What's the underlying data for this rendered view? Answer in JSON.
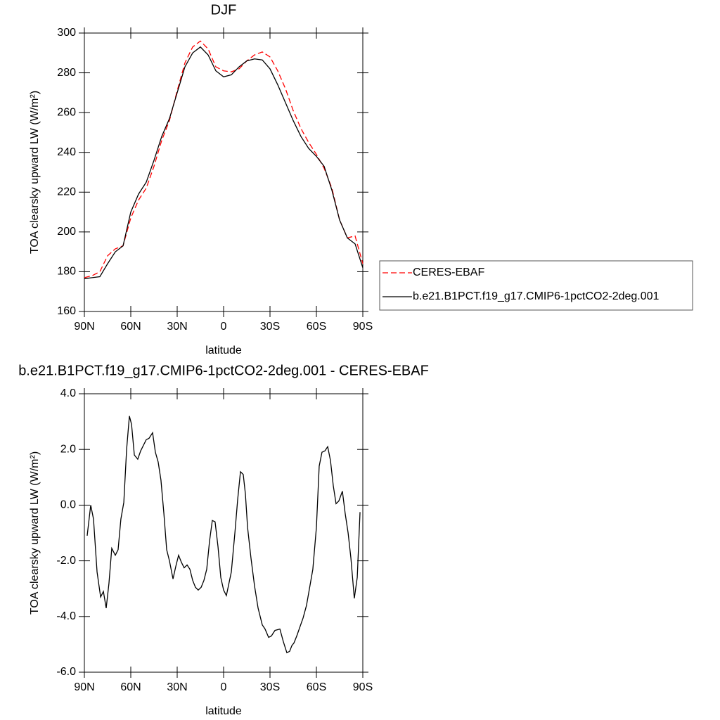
{
  "chart_data": [
    {
      "type": "line",
      "title": "DJF",
      "xlabel": "latitude",
      "ylabel": "TOA clearsky upward LW (W/m²)",
      "x": [
        90,
        85,
        80,
        75,
        70,
        65,
        60,
        55,
        50,
        45,
        40,
        35,
        30,
        25,
        20,
        15,
        10,
        5,
        0,
        -5,
        -10,
        -15,
        -20,
        -25,
        -30,
        -35,
        -40,
        -45,
        -50,
        -55,
        -60,
        -65,
        -70,
        -75,
        -80,
        -85,
        -90
      ],
      "series": [
        {
          "name": "CERES-EBAF",
          "color": "#ff0000",
          "dashed": true,
          "values": [
            177,
            178,
            180,
            188,
            191.5,
            193,
            207,
            216,
            222,
            233,
            246,
            256,
            271,
            285,
            293,
            296,
            292,
            283,
            281,
            280.5,
            282,
            286,
            289,
            290.5,
            288,
            281,
            272,
            261,
            252,
            245,
            239,
            232,
            222,
            206,
            197,
            198,
            184
          ]
        },
        {
          "name": "b.e21.B1PCT.f19_g17.CMIP6-1pctCO2-2deg.001",
          "color": "#000000",
          "dashed": false,
          "values": [
            176.5,
            177,
            177.5,
            184,
            190,
            193,
            210,
            219,
            225,
            236,
            248,
            257,
            270,
            283,
            290,
            293,
            289,
            281,
            278,
            279,
            283,
            286,
            287,
            286.5,
            282,
            274,
            265,
            256,
            248,
            242,
            238,
            233,
            221,
            206,
            197,
            194,
            182
          ]
        }
      ],
      "xlim": [
        90,
        -90
      ],
      "xticks": [
        {
          "value": 90,
          "label": "90N"
        },
        {
          "value": 60,
          "label": "60N"
        },
        {
          "value": 30,
          "label": "30N"
        },
        0,
        {
          "value": -30,
          "label": "30S"
        },
        {
          "value": -60,
          "label": "60S"
        },
        {
          "value": -90,
          "label": "90S"
        }
      ],
      "ylim": [
        160,
        300
      ],
      "yticks": [
        160,
        180,
        200,
        220,
        240,
        260,
        280,
        300
      ],
      "legend": "right"
    },
    {
      "type": "line",
      "title": "b.e21.B1PCT.f19_g17.CMIP6-1pctCO2-2deg.001 - CERES-EBAF",
      "xlabel": "latitude",
      "ylabel": "TOA clearsky upward LW (W/m²)",
      "color": "#000000",
      "x": [
        88.2,
        85.9,
        84.1,
        81.8,
        79.5,
        77.7,
        75.9,
        74.1,
        72.3,
        70,
        68.2,
        66.4,
        64.5,
        62.7,
        60.9,
        59.5,
        57.7,
        55.5,
        53.6,
        51.8,
        50,
        48.2,
        45.9,
        44.1,
        42.3,
        40.5,
        38.6,
        36.8,
        35,
        32.7,
        30.9,
        29.1,
        27.3,
        25.5,
        23.6,
        21.8,
        20,
        18.2,
        16.4,
        14.5,
        12.7,
        10.9,
        9.1,
        7.3,
        5.5,
        3.6,
        1.8,
        0,
        -1.8,
        -5,
        -7.3,
        -9.1,
        -10.9,
        -12.7,
        -14.1,
        -15.5,
        -17.7,
        -20,
        -22.3,
        -25,
        -26.8,
        -29.1,
        -30.9,
        -33.2,
        -36.4,
        -38.6,
        -40.9,
        -42.7,
        -44.1,
        -45.5,
        -47.3,
        -49.5,
        -51.4,
        -53.6,
        -55.5,
        -57.7,
        -60,
        -61.8,
        -63.6,
        -65.5,
        -67.3,
        -69.1,
        -70.9,
        -72.7,
        -74.5,
        -76.8,
        -78.6,
        -80.5,
        -82.3,
        -84.5,
        -86.4,
        -88.2
      ],
      "values": [
        -1.1,
        0,
        -0.5,
        -2.4,
        -3.3,
        -3.1,
        -3.7,
        -2.8,
        -1.55,
        -1.8,
        -1.6,
        -0.5,
        0.1,
        2.0,
        3.2,
        2.9,
        1.8,
        1.65,
        1.95,
        2.15,
        2.35,
        2.4,
        2.6,
        1.9,
        1.55,
        0.9,
        -0.3,
        -1.6,
        -2.0,
        -2.65,
        -2.2,
        -1.8,
        -2.05,
        -2.25,
        -2.15,
        -2.3,
        -2.7,
        -2.95,
        -3.05,
        -2.95,
        -2.7,
        -2.3,
        -1.3,
        -0.55,
        -0.6,
        -1.5,
        -2.6,
        -3.05,
        -3.25,
        -2.4,
        -1.0,
        0.2,
        1.2,
        1.1,
        0.4,
        -0.8,
        -1.9,
        -2.9,
        -3.7,
        -4.3,
        -4.45,
        -4.75,
        -4.7,
        -4.5,
        -4.45,
        -4.9,
        -5.3,
        -5.25,
        -5.05,
        -4.95,
        -4.7,
        -4.35,
        -4.05,
        -3.6,
        -3.0,
        -2.3,
        -0.8,
        1.4,
        1.9,
        1.95,
        2.1,
        1.6,
        0.7,
        0.05,
        0.15,
        0.5,
        -0.3,
        -1.0,
        -1.9,
        -3.35,
        -2.6,
        -0.25
      ],
      "xlim": [
        90,
        -90
      ],
      "xticks": [
        {
          "value": 90,
          "label": "90N"
        },
        {
          "value": 60,
          "label": "60N"
        },
        {
          "value": 30,
          "label": "30N"
        },
        0,
        {
          "value": -30,
          "label": "30S"
        },
        {
          "value": -60,
          "label": "60S"
        },
        {
          "value": -90,
          "label": "90S"
        }
      ],
      "ylim": [
        -6,
        4
      ],
      "yticks": [
        {
          "value": -6,
          "label": "-6.0"
        },
        {
          "value": -4,
          "label": "-4.0"
        },
        {
          "value": -2,
          "label": "-2.0"
        },
        {
          "value": 0,
          "label": "0.0"
        },
        {
          "value": 2,
          "label": "2.0"
        },
        {
          "value": 4,
          "label": "4.0"
        }
      ]
    }
  ]
}
